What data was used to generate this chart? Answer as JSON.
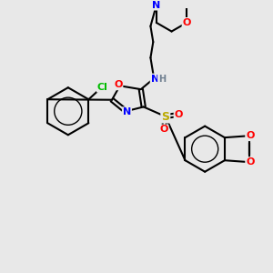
{
  "background_color": "#e8e8e8",
  "atom_colors": {
    "C": "#000000",
    "N": "#0000ff",
    "O": "#ff0000",
    "S": "#bbaa00",
    "Cl": "#00bb00",
    "H": "#708090"
  },
  "lw": 1.5
}
